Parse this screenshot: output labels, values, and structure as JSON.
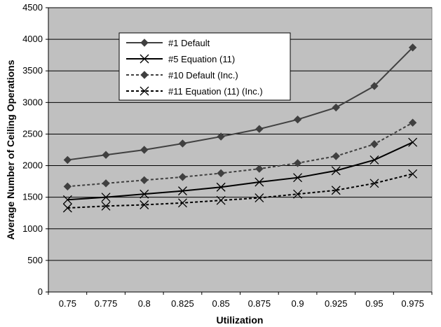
{
  "chart_data": {
    "type": "line",
    "title": "",
    "xlabel": "Utilization",
    "ylabel": "Average Number of Ceiling Operations",
    "categories": [
      "0.75",
      "0.775",
      "0.8",
      "0.825",
      "0.85",
      "0.875",
      "0.9",
      "0.925",
      "0.95",
      "0.975"
    ],
    "y_ticks": [
      "0",
      "500",
      "1000",
      "1500",
      "2000",
      "2500",
      "3000",
      "3500",
      "4000",
      "4500"
    ],
    "ylim": [
      0,
      4500
    ],
    "grid": "horizontal",
    "legend_position": "top-left",
    "plot_background": "#c0c0c0",
    "series": [
      {
        "name": "#1 Default",
        "marker": "diamond",
        "line_style": "solid",
        "color": "#404040",
        "values": [
          2090,
          2170,
          2250,
          2350,
          2460,
          2580,
          2730,
          2920,
          3260,
          3870
        ]
      },
      {
        "name": "#5 Equation (11)",
        "marker": "x",
        "line_style": "solid",
        "color": "#000000",
        "values": [
          1460,
          1500,
          1550,
          1600,
          1660,
          1740,
          1810,
          1920,
          2090,
          2370
        ]
      },
      {
        "name": "#10 Default (Inc.)",
        "marker": "diamond",
        "line_style": "dashed",
        "color": "#404040",
        "values": [
          1670,
          1720,
          1770,
          1820,
          1880,
          1950,
          2040,
          2150,
          2340,
          2680
        ]
      },
      {
        "name": "#11 Equation (11) (Inc.)",
        "marker": "x",
        "line_style": "dashed",
        "color": "#000000",
        "values": [
          1330,
          1360,
          1380,
          1410,
          1450,
          1490,
          1550,
          1610,
          1720,
          1870
        ]
      }
    ]
  }
}
